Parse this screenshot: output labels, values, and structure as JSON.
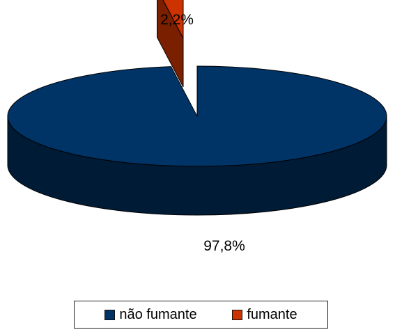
{
  "chart_data": {
    "type": "pie",
    "style": "3d-exploded",
    "series": [
      {
        "name": "não fumante",
        "value": 97.8,
        "label": "97,8%",
        "color": "#003366"
      },
      {
        "name": "fumante",
        "value": 2.2,
        "label": "2,2%",
        "color": "#cc3300"
      }
    ],
    "title": "",
    "legend_position": "bottom"
  }
}
